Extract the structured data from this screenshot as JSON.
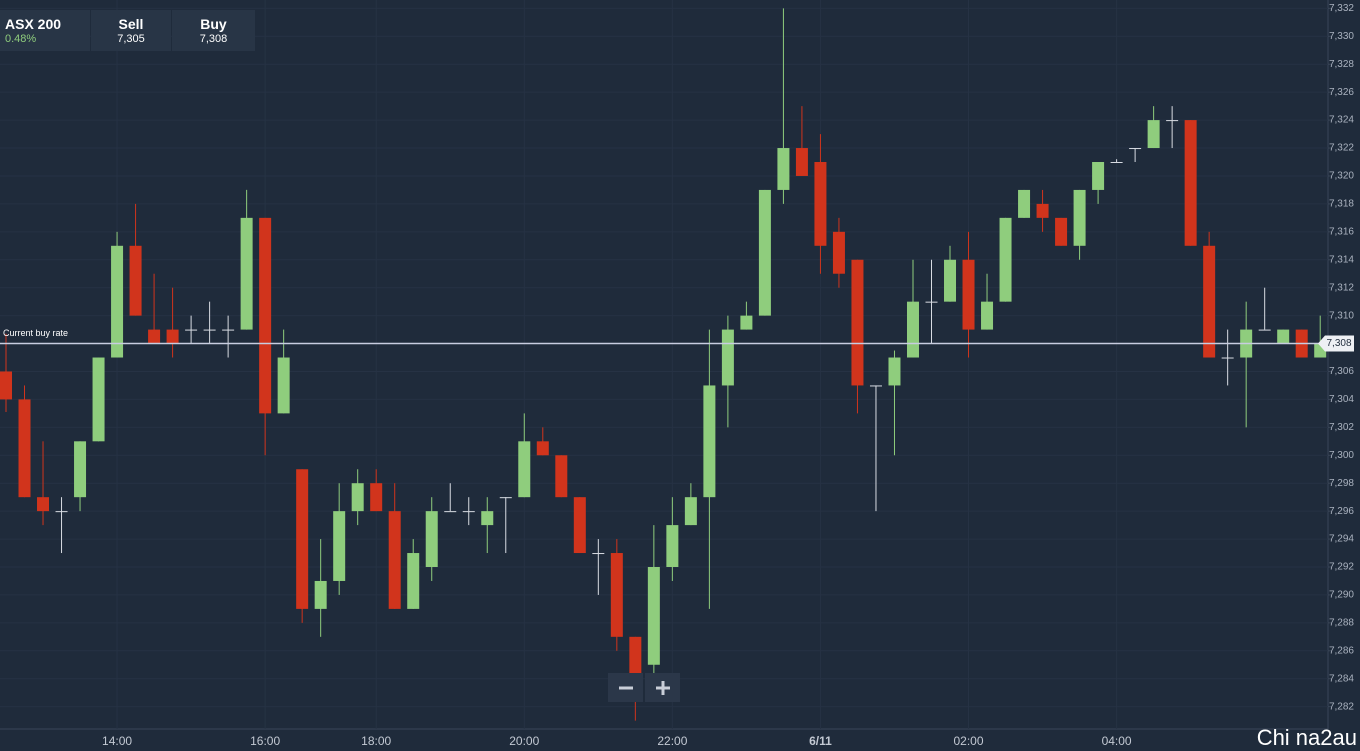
{
  "header": {
    "instrument": "ASX 200",
    "change": "0.48%",
    "sell_label": "Sell",
    "sell": "7,305",
    "buy_label": "Buy",
    "buy": "7,308"
  },
  "chart_data": {
    "type": "candlestick",
    "categories": [
      null,
      null,
      null,
      null,
      null,
      null,
      "14:00",
      null,
      null,
      null,
      null,
      null,
      null,
      null,
      "16:00",
      null,
      null,
      null,
      null,
      null,
      "18:00",
      null,
      null,
      null,
      null,
      null,
      null,
      null,
      "20:00",
      null,
      null,
      null,
      null,
      null,
      null,
      null,
      "22:00",
      null,
      null,
      null,
      null,
      null,
      null,
      null,
      "6/11",
      null,
      null,
      null,
      null,
      null,
      null,
      null,
      "02:00",
      null,
      null,
      null,
      null,
      null,
      null,
      null,
      "04:00",
      null,
      null,
      null,
      null,
      null,
      null,
      null,
      null,
      null,
      null,
      null
    ],
    "open": [
      7306,
      7304,
      7297,
      7296,
      7297,
      7301,
      7307,
      7315,
      7309,
      7309,
      7309,
      7309,
      7309,
      7309,
      7317,
      7303,
      7299,
      7289,
      7291,
      7296,
      7298,
      7296,
      7289,
      7292,
      7296,
      7296,
      7295,
      7297,
      7297,
      7301,
      7300,
      7297,
      7293,
      7293,
      7287,
      7285,
      7292,
      7295,
      7297,
      7305,
      7309,
      7310,
      7319,
      7322,
      7321,
      7316,
      7314,
      7305,
      7305,
      7307,
      7311,
      7311,
      7314,
      7309,
      7311,
      7317,
      7318,
      7317,
      7315,
      7319,
      7321,
      7322,
      7322,
      7324,
      7324,
      7315,
      7307,
      7307,
      7309,
      7308,
      7309,
      7307
    ],
    "high": [
      7308.7,
      7305,
      7301,
      7297,
      7301,
      7307,
      7316,
      7318,
      7313,
      7312,
      7310,
      7311,
      7310,
      7319,
      7317,
      7309,
      7299,
      7294,
      7298,
      7299,
      7299,
      7298,
      7294,
      7297,
      7298,
      7297,
      7297,
      7297,
      7303,
      7302,
      7300,
      7297,
      7294,
      7294,
      7287,
      7295,
      7297,
      7298,
      7309,
      7310,
      7311,
      7319,
      7332,
      7325,
      7323,
      7317,
      7314,
      7305,
      7307.5,
      7314,
      7314,
      7315,
      7316,
      7313,
      7317,
      7319,
      7319,
      7317,
      7319,
      7321,
      7321.2,
      7322,
      7325,
      7325,
      7324,
      7316,
      7309,
      7311,
      7312,
      7309,
      7309,
      7310
    ],
    "low": [
      7303.1,
      7297,
      7295,
      7293,
      7296,
      7301,
      7307,
      7310,
      7308,
      7307,
      7308,
      7308,
      7307,
      7309,
      7300,
      7303,
      7288,
      7287,
      7290,
      7295,
      7296,
      7289,
      7289,
      7291,
      7296,
      7295,
      7293,
      7293,
      7297,
      7300,
      7297,
      7293,
      7290,
      7286,
      7281,
      7284,
      7291,
      7295,
      7289,
      7302,
      7309,
      7310,
      7318,
      7320,
      7313,
      7312,
      7303,
      7296,
      7300,
      7307,
      7308,
      7311,
      7307,
      7309,
      7311,
      7317,
      7316,
      7315,
      7314,
      7318,
      7321,
      7321,
      7322,
      7322,
      7315,
      7307,
      7305,
      7302,
      7309,
      7308,
      7307,
      7307
    ],
    "close": [
      7304,
      7297,
      7296,
      7296,
      7301,
      7307,
      7315,
      7310,
      7308,
      7308,
      7309,
      7309,
      7309,
      7317,
      7303,
      7307,
      7289,
      7291,
      7296,
      7298,
      7296,
      7289,
      7293,
      7296,
      7296,
      7296,
      7296,
      7297,
      7301,
      7300,
      7297,
      7293,
      7293,
      7287,
      7284,
      7292,
      7295,
      7297,
      7305,
      7309,
      7310,
      7319,
      7322,
      7320,
      7315,
      7313,
      7305,
      7305,
      7307,
      7311,
      7311,
      7314,
      7309,
      7311,
      7317,
      7319,
      7317,
      7315,
      7319,
      7321,
      7321,
      7322,
      7324,
      7324,
      7315,
      7307,
      7307,
      7309,
      7309,
      7309,
      7307,
      7308
    ],
    "up_color": "#8fcd7d",
    "down_color": "#d1341c",
    "ylim": [
      7280.4,
      7332.6
    ],
    "yticks": [
      {
        "value": 7282,
        "label": "7,282"
      },
      {
        "value": 7284,
        "label": "7,284"
      },
      {
        "value": 7286,
        "label": "7,286"
      },
      {
        "value": 7288,
        "label": "7,288"
      },
      {
        "value": 7290,
        "label": "7,290"
      },
      {
        "value": 7292,
        "label": "7,292"
      },
      {
        "value": 7294,
        "label": "7,294"
      },
      {
        "value": 7296,
        "label": "7,296"
      },
      {
        "value": 7298,
        "label": "7,298"
      },
      {
        "value": 7300,
        "label": "7,300"
      },
      {
        "value": 7302,
        "label": "7,302"
      },
      {
        "value": 7304,
        "label": "7,304"
      },
      {
        "value": 7306,
        "label": "7,306"
      },
      {
        "value": 7308,
        "label": "7,308"
      },
      {
        "value": 7310,
        "label": "7,310"
      },
      {
        "value": 7312,
        "label": "7,312"
      },
      {
        "value": 7314,
        "label": "7,314"
      },
      {
        "value": 7316,
        "label": "7,316"
      },
      {
        "value": 7318,
        "label": "7,318"
      },
      {
        "value": 7320,
        "label": "7,320"
      },
      {
        "value": 7322,
        "label": "7,322"
      },
      {
        "value": 7324,
        "label": "7,324"
      },
      {
        "value": 7326,
        "label": "7,326"
      },
      {
        "value": 7328,
        "label": "7,328"
      },
      {
        "value": 7330,
        "label": "7,330"
      },
      {
        "value": 7332,
        "label": "7,332"
      }
    ],
    "grid": true,
    "current_rate": {
      "label": "Current buy rate",
      "value": 7308,
      "value_label": "7,308"
    },
    "watermark": "Chi na2au"
  }
}
